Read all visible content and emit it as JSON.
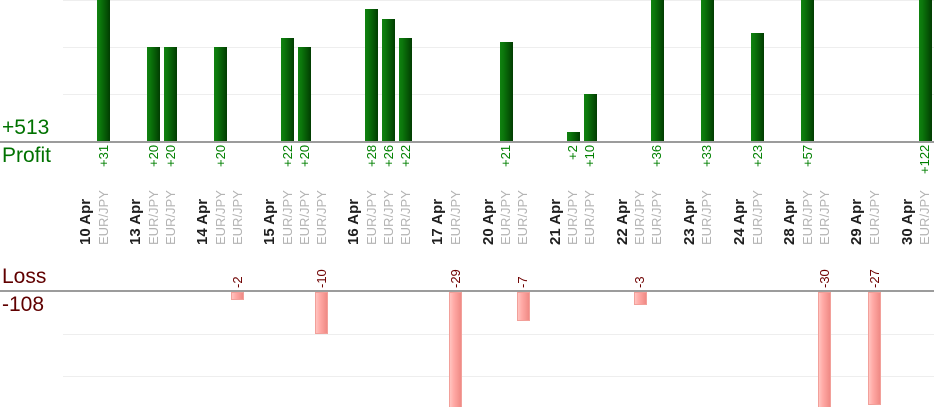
{
  "chart_data": {
    "type": "bar",
    "title": "",
    "grid": true,
    "legend_position": "none",
    "orientation": "vertical",
    "profit_section": {
      "label": "Profit",
      "total_label": "+513",
      "text_color": "#007200",
      "value_label_color": "#008000",
      "bar_color_start": "#108310",
      "bar_color_end": "#013c01",
      "visible_axis_range": [
        0,
        30
      ],
      "gridline_values": [
        10,
        20,
        30
      ]
    },
    "loss_section": {
      "label": "Loss",
      "total_label": "-108",
      "text_color": "#600000",
      "value_label_color": "#6e0000",
      "bar_color_start": "#ffc4c0",
      "bar_color_end": "#f08a85",
      "visible_axis_range": [
        0,
        -27
      ],
      "gridline_values": [
        -10,
        -20,
        -30
      ]
    },
    "x_axis": {
      "category_type": "date",
      "pair_label_color": "#b3b3b3",
      "date_label_color": "#1f1f1f"
    },
    "days": [
      {
        "date": "10 Apr",
        "trades": [
          {
            "pair": "EUR/JPY",
            "value": 31,
            "label": "+31"
          }
        ]
      },
      {
        "date": "13 Apr",
        "trades": [
          {
            "pair": "EUR/JPY",
            "value": 20,
            "label": "+20"
          },
          {
            "pair": "EUR/JPY",
            "value": 20,
            "label": "+20"
          }
        ]
      },
      {
        "date": "14 Apr",
        "trades": [
          {
            "pair": "EUR/JPY",
            "value": 20,
            "label": "+20"
          },
          {
            "pair": "EUR/JPY",
            "value": -2,
            "label": "-2"
          }
        ]
      },
      {
        "date": "15 Apr",
        "trades": [
          {
            "pair": "EUR/JPY",
            "value": 22,
            "label": "+22"
          },
          {
            "pair": "EUR/JPY",
            "value": 20,
            "label": "+20"
          },
          {
            "pair": "EUR/JPY",
            "value": -10,
            "label": "-10"
          }
        ]
      },
      {
        "date": "16 Apr",
        "trades": [
          {
            "pair": "EUR/JPY",
            "value": 28,
            "label": "+28"
          },
          {
            "pair": "EUR/JPY",
            "value": 26,
            "label": "+26"
          },
          {
            "pair": "EUR/JPY",
            "value": 22,
            "label": "+22"
          }
        ]
      },
      {
        "date": "17 Apr",
        "trades": [
          {
            "pair": "EUR/JPY",
            "value": -29,
            "label": "-29"
          }
        ]
      },
      {
        "date": "20 Apr",
        "trades": [
          {
            "pair": "EUR/JPY",
            "value": 21,
            "label": "+21"
          },
          {
            "pair": "EUR/JPY",
            "value": -7,
            "label": "-7"
          }
        ]
      },
      {
        "date": "21 Apr",
        "trades": [
          {
            "pair": "EUR/JPY",
            "value": 2,
            "label": "+2"
          },
          {
            "pair": "EUR/JPY",
            "value": 10,
            "label": "+10"
          }
        ]
      },
      {
        "date": "22 Apr",
        "trades": [
          {
            "pair": "EUR/JPY",
            "value": -3,
            "label": "-3"
          },
          {
            "pair": "EUR/JPY",
            "value": 36,
            "label": "+36"
          }
        ]
      },
      {
        "date": "23 Apr",
        "trades": [
          {
            "pair": "EUR/JPY",
            "value": 33,
            "label": "+33"
          }
        ]
      },
      {
        "date": "24 Apr",
        "trades": [
          {
            "pair": "EUR/JPY",
            "value": 23,
            "label": "+23"
          }
        ]
      },
      {
        "date": "28 Apr",
        "trades": [
          {
            "pair": "EUR/JPY",
            "value": 57,
            "label": "+57"
          },
          {
            "pair": "EUR/JPY",
            "value": -30,
            "label": "-30"
          }
        ]
      },
      {
        "date": "29 Apr",
        "trades": [
          {
            "pair": "EUR/JPY",
            "value": -27,
            "label": "-27"
          }
        ]
      },
      {
        "date": "30 Apr",
        "trades": [
          {
            "pair": "EUR/JPY",
            "value": 122,
            "label": "+122"
          }
        ]
      }
    ]
  }
}
